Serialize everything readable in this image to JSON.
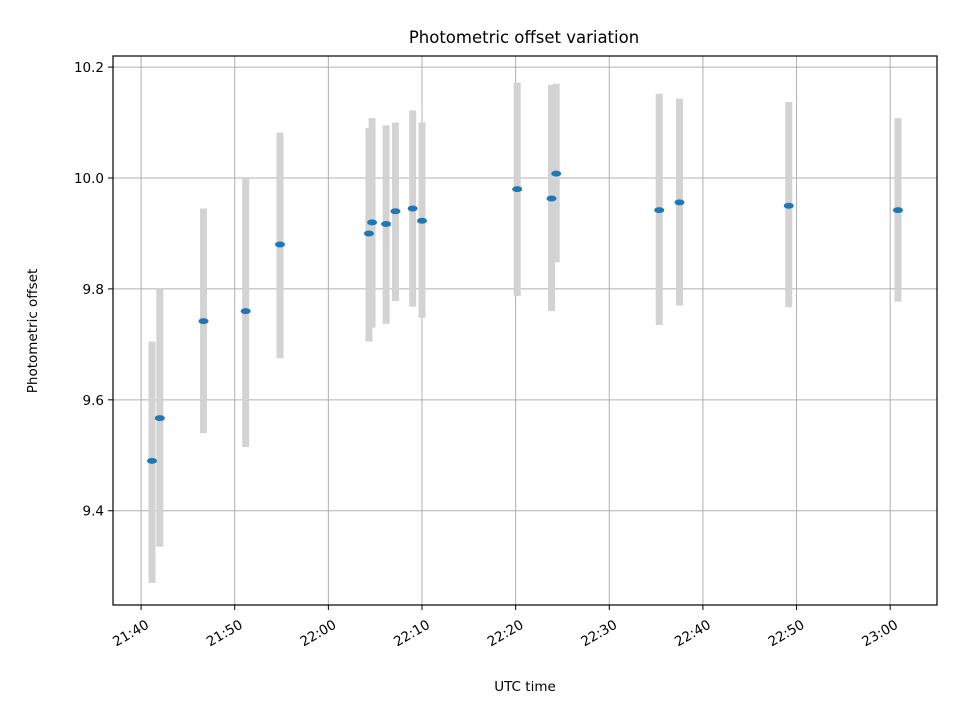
{
  "chart_data": {
    "type": "scatter",
    "title": "Photometric offset variation",
    "xlabel": "UTC time",
    "ylabel": "Photometric offset",
    "x_ticks": [
      "21:40",
      "21:50",
      "22:00",
      "22:10",
      "22:20",
      "22:30",
      "22:40",
      "22:50",
      "23:00"
    ],
    "y_ticks": [
      "9.4",
      "9.6",
      "9.8",
      "10.0",
      "10.2"
    ],
    "xlim": [
      "21:37",
      "23:05"
    ],
    "ylim": [
      9.23,
      10.22
    ],
    "grid": true,
    "errorbar_color": "#d3d3d3",
    "point_color": "#1f77b4",
    "points": [
      {
        "t": "21:41:10",
        "y": 9.49,
        "ylow": 9.27,
        "yhigh": 9.705
      },
      {
        "t": "21:42:00",
        "y": 9.567,
        "ylow": 9.335,
        "yhigh": 9.8
      },
      {
        "t": "21:46:40",
        "y": 9.742,
        "ylow": 9.54,
        "yhigh": 9.945
      },
      {
        "t": "21:51:10",
        "y": 9.76,
        "ylow": 9.515,
        "yhigh": 10.0
      },
      {
        "t": "21:54:50",
        "y": 9.88,
        "ylow": 9.675,
        "yhigh": 10.082
      },
      {
        "t": "22:04:20",
        "y": 9.9,
        "ylow": 9.705,
        "yhigh": 10.09
      },
      {
        "t": "22:04:40",
        "y": 9.92,
        "ylow": 9.73,
        "yhigh": 10.108
      },
      {
        "t": "22:06:10",
        "y": 9.917,
        "ylow": 9.737,
        "yhigh": 10.095
      },
      {
        "t": "22:07:10",
        "y": 9.94,
        "ylow": 9.778,
        "yhigh": 10.1
      },
      {
        "t": "22:09:00",
        "y": 9.945,
        "ylow": 9.768,
        "yhigh": 10.122
      },
      {
        "t": "22:10:00",
        "y": 9.923,
        "ylow": 9.748,
        "yhigh": 10.1
      },
      {
        "t": "22:20:10",
        "y": 9.98,
        "ylow": 9.787,
        "yhigh": 10.172
      },
      {
        "t": "22:23:50",
        "y": 9.963,
        "ylow": 9.76,
        "yhigh": 10.168
      },
      {
        "t": "22:24:20",
        "y": 10.008,
        "ylow": 9.848,
        "yhigh": 10.17
      },
      {
        "t": "22:35:20",
        "y": 9.942,
        "ylow": 9.735,
        "yhigh": 10.152
      },
      {
        "t": "22:37:30",
        "y": 9.956,
        "ylow": 9.77,
        "yhigh": 10.143
      },
      {
        "t": "22:49:10",
        "y": 9.95,
        "ylow": 9.767,
        "yhigh": 10.137
      },
      {
        "t": "23:00:50",
        "y": 9.942,
        "ylow": 9.777,
        "yhigh": 10.108
      }
    ]
  }
}
